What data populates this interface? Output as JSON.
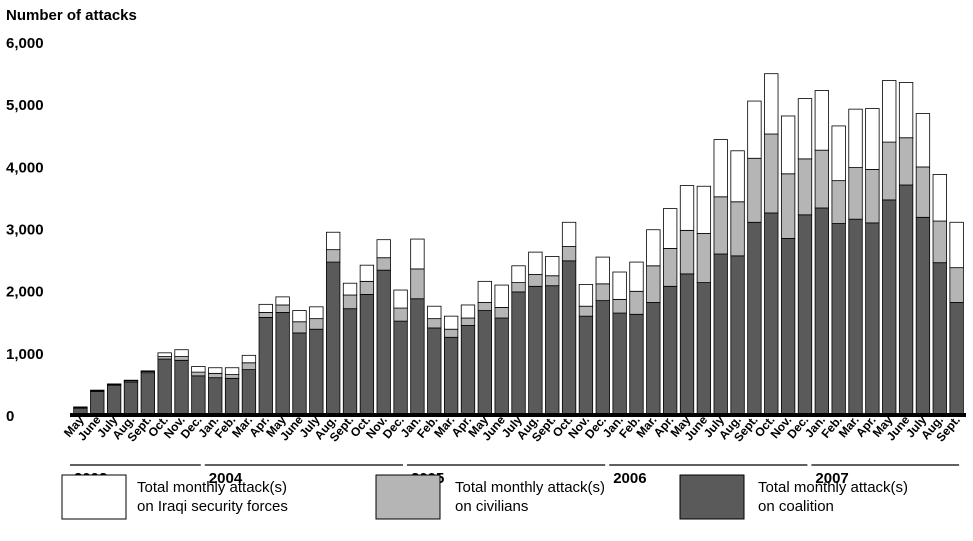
{
  "chart_data": {
    "type": "bar",
    "stacked": true,
    "ylabel": "Number of attacks",
    "ylim": [
      0,
      6000
    ],
    "yticks": [
      "0",
      "1,000",
      "2,000",
      "3,000",
      "4,000",
      "5,000",
      "6,000"
    ],
    "ytick_values": [
      0,
      1000,
      2000,
      3000,
      4000,
      5000,
      6000
    ],
    "grid": false,
    "legend_position": "bottom",
    "categories": [
      "May",
      "June",
      "July",
      "Aug.",
      "Sept.",
      "Oct.",
      "Nov.",
      "Dec.",
      "Jan.",
      "Feb.",
      "Mar.",
      "Apr.",
      "May",
      "June",
      "July",
      "Aug.",
      "Sept.",
      "Oct.",
      "Nov.",
      "Dec.",
      "Jan.",
      "Feb.",
      "Mar.",
      "Apr.",
      "May",
      "June",
      "July",
      "Aug.",
      "Sept.",
      "Oct.",
      "Nov.",
      "Dec.",
      "Jan.",
      "Feb.",
      "Mar.",
      "Apr.",
      "May",
      "June",
      "July",
      "Aug.",
      "Sept.",
      "Oct.",
      "Nov.",
      "Dec.",
      "Jan.",
      "Feb.",
      "Mar.",
      "Apr.",
      "May",
      "June",
      "July",
      "Aug.",
      "Sept."
    ],
    "years": [
      {
        "label": "2003",
        "start": 0,
        "end": 8
      },
      {
        "label": "2004",
        "start": 8,
        "end": 20
      },
      {
        "label": "2005",
        "start": 20,
        "end": 32
      },
      {
        "label": "2006",
        "start": 32,
        "end": 44
      },
      {
        "label": "2007",
        "start": 44,
        "end": 53
      }
    ],
    "series": [
      {
        "name": "Total monthly attack(s) on coalition",
        "color": "#5a5a5a",
        "values": [
          110,
          380,
          480,
          530,
          680,
          900,
          880,
          630,
          600,
          590,
          730,
          1570,
          1650,
          1320,
          1380,
          2460,
          1710,
          1940,
          2330,
          1510,
          1870,
          1400,
          1250,
          1440,
          1680,
          1560,
          1980,
          2070,
          2080,
          2480,
          1590,
          1840,
          1640,
          1620,
          1810,
          2070,
          2270,
          2130,
          2590,
          2560,
          3100,
          3250,
          2840,
          3220,
          3330,
          3080,
          3150,
          3090,
          3460,
          3700,
          3180,
          2450,
          1810
        ]
      },
      {
        "name": "Total monthly attack(s) on civilians",
        "color": "#b5b5b5",
        "values": [
          10,
          10,
          10,
          20,
          20,
          40,
          60,
          60,
          70,
          60,
          110,
          80,
          120,
          180,
          170,
          200,
          220,
          210,
          200,
          210,
          480,
          150,
          130,
          120,
          130,
          170,
          150,
          190,
          160,
          230,
          160,
          270,
          220,
          370,
          590,
          610,
          700,
          790,
          920,
          870,
          1030,
          1270,
          1040,
          900,
          930,
          690,
          830,
          860,
          930,
          760,
          810,
          670,
          560
        ]
      },
      {
        "name": "Total monthly attack(s) on Iraqi security forces",
        "color": "#ffffff",
        "values": [
          10,
          10,
          10,
          10,
          10,
          60,
          110,
          90,
          90,
          110,
          120,
          130,
          130,
          180,
          190,
          280,
          190,
          260,
          290,
          290,
          480,
          200,
          210,
          210,
          340,
          360,
          270,
          360,
          310,
          390,
          350,
          430,
          440,
          470,
          580,
          640,
          720,
          760,
          920,
          820,
          920,
          970,
          930,
          970,
          960,
          880,
          940,
          980,
          990,
          890,
          860,
          750,
          730
        ]
      }
    ]
  }
}
